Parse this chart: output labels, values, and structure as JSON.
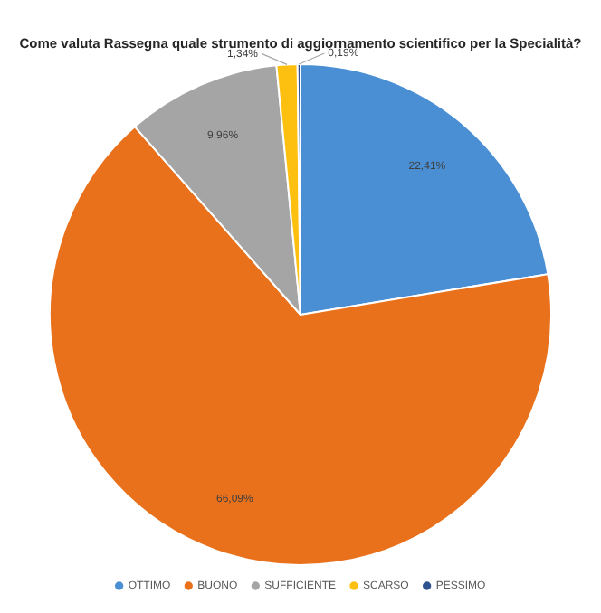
{
  "chart_data": {
    "type": "pie",
    "title": "Come valuta Rassegna quale strumento di aggiornamento scientifico per la Specialità?",
    "categories": [
      "OTTIMO",
      "BUONO",
      "SUFFICIENTE",
      "SCARSO",
      "PESSIMO"
    ],
    "values": [
      22.41,
      66.09,
      9.96,
      1.34,
      0.19
    ],
    "value_labels": [
      "22,41%",
      "66,09%",
      "9,96%",
      "1,34%",
      "0,19%"
    ],
    "colors": [
      "#4a8ed4",
      "#e9711c",
      "#a5a5a5",
      "#fdbf10",
      "#2e538f"
    ],
    "legend": "bottom"
  }
}
